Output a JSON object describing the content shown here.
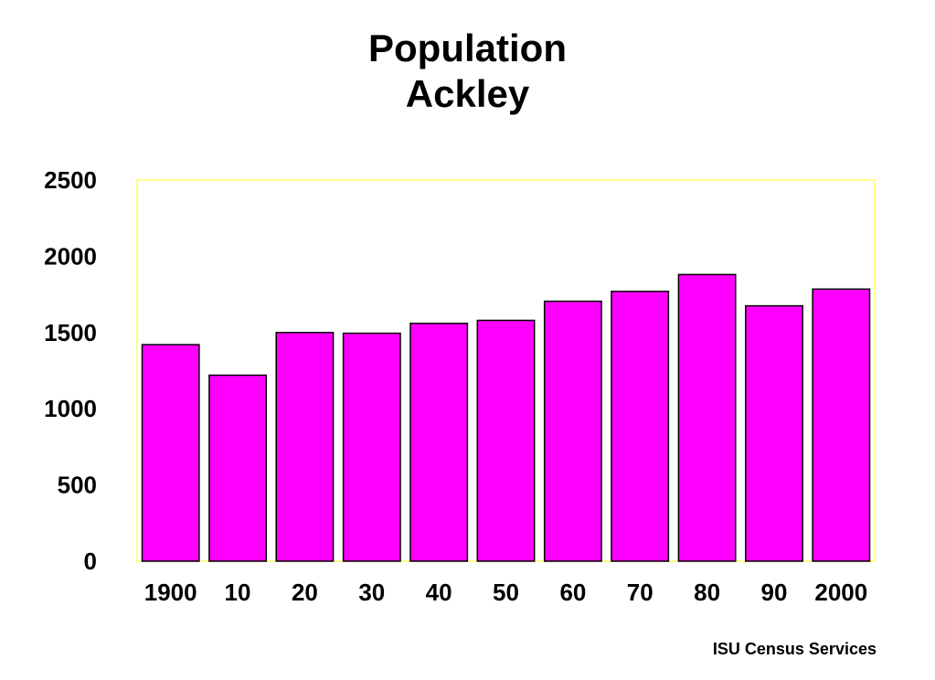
{
  "chart_data": {
    "type": "bar",
    "title": "Population",
    "subtitle": "Ackley",
    "categories": [
      "1900",
      "10",
      "20",
      "30",
      "40",
      "50",
      "60",
      "70",
      "80",
      "90",
      "2000"
    ],
    "values": [
      1420,
      1220,
      1500,
      1495,
      1560,
      1580,
      1705,
      1770,
      1880,
      1675,
      1785
    ],
    "yticks": [
      "0",
      "500",
      "1000",
      "1500",
      "2000",
      "2500"
    ],
    "ylim": [
      0,
      2500
    ],
    "grid": false,
    "colors": {
      "bar": "#ff00ff",
      "bar_border": "#000000",
      "plot_border": "#ffff66"
    }
  },
  "footer": {
    "source": "ISU Census Services"
  }
}
